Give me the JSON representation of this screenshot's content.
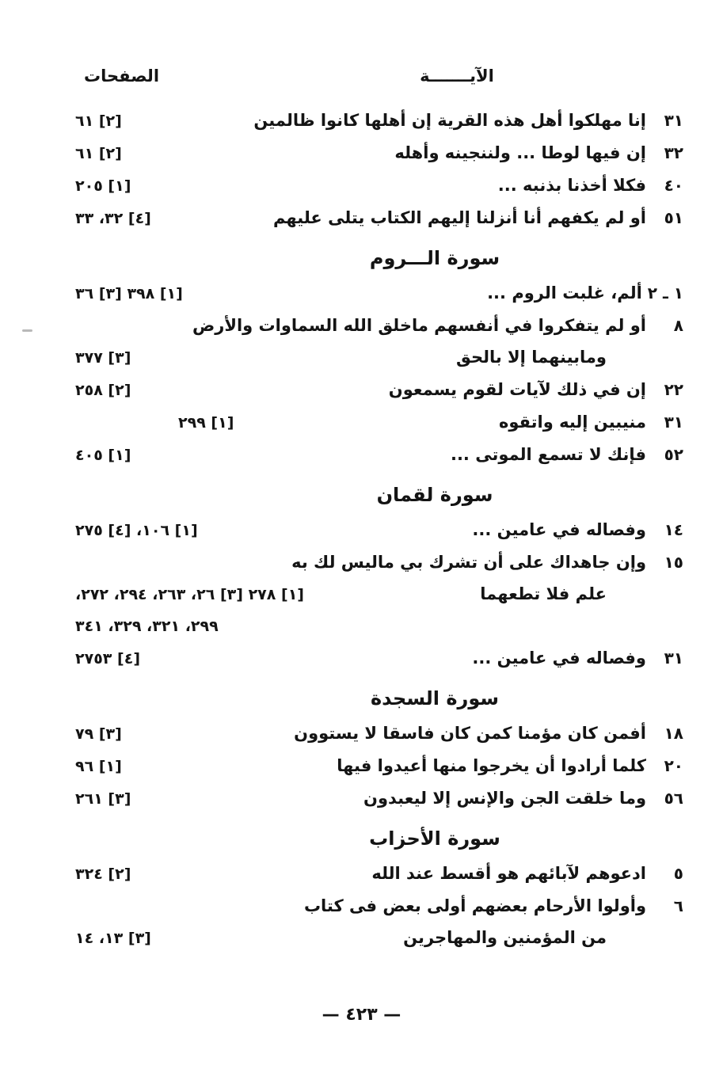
{
  "page": {
    "header": {
      "verse_label": "الآيـــــــة",
      "pages_label": "الصفحات"
    },
    "sections": [
      {
        "title": "",
        "rows": [
          {
            "verse": "٣١",
            "lines": [
              {
                "text": "إنا مهلكوا أهل هذه القرية إن أهلها كانوا ظالمين",
                "ref": "[٢] ٦١"
              }
            ]
          },
          {
            "verse": "٣٢",
            "lines": [
              {
                "text": "إن فيها لوطا ... ولننجينه وأهله",
                "ref": "[٢] ٦١"
              }
            ]
          },
          {
            "verse": "٤٠",
            "lines": [
              {
                "text": "فكلا أخذنا بذنبه ...",
                "ref": "[١] ٢٠٥"
              }
            ]
          },
          {
            "verse": "٥١",
            "lines": [
              {
                "text": "أو لم يكفهم أنا أنزلنا إليهم الكتاب يتلى عليهم",
                "ref": "[٤] ٣٢، ٣٣"
              }
            ]
          }
        ]
      },
      {
        "title": "سورة الـــروم",
        "rows": [
          {
            "verse": "١ ـ ٢",
            "lines": [
              {
                "text": "ألم، غلبت الروم ...",
                "ref": "[١] ٣٩٨ [٣] ٣٦"
              }
            ]
          },
          {
            "verse": "٨",
            "lines": [
              {
                "text": "أو لم يتفكروا في أنفسهم ماخلق الله السماوات والأرض",
                "ref": ""
              },
              {
                "text": "ومابينهما إلا بالحق",
                "ref": "[٣] ٣٧٧",
                "indent": true
              }
            ]
          },
          {
            "verse": "٢٢",
            "lines": [
              {
                "text": "إن في ذلك لآيات لقوم يسمعون",
                "ref": "[٢] ٢٥٨"
              }
            ]
          },
          {
            "verse": "٣١",
            "lines": [
              {
                "text": "منيبين إليه واتقوه",
                "ref": "[١] ٢٩٩",
                "ref_indent": true
              }
            ]
          },
          {
            "verse": "٥٢",
            "lines": [
              {
                "text": "فإنك لا تسمع الموتى ...",
                "ref": "[١] ٤٠٥"
              }
            ]
          }
        ]
      },
      {
        "title": "سورة لقمان",
        "rows": [
          {
            "verse": "١٤",
            "lines": [
              {
                "text": "وفصاله في عامين ...",
                "ref": "[١] ١٠٦، [٤] ٢٧٥"
              }
            ]
          },
          {
            "verse": "١٥",
            "lines": [
              {
                "text": "وإن جاهداك على أن تشرك بي ماليس لك به",
                "ref": ""
              },
              {
                "text": "علم فلا تطعهما",
                "ref": "[١] ٢٧٨ [٣] ٢٦، ٢٦٣، ٢٩٤، ٢٧٢،",
                "indent": true
              },
              {
                "text": "",
                "ref": "٢٩٩، ٣٢١، ٣٢٩، ٣٤١"
              }
            ]
          },
          {
            "verse": "٣١",
            "lines": [
              {
                "text": "وفصاله في عامين ...",
                "ref": "[٤] ٢٧٥٣"
              }
            ]
          }
        ]
      },
      {
        "title": "سورة السجدة",
        "rows": [
          {
            "verse": "١٨",
            "lines": [
              {
                "text": "أفمن كان مؤمنا كمن كان فاسقا لا يستوون",
                "ref": "[٣] ٧٩"
              }
            ]
          },
          {
            "verse": "٢٠",
            "lines": [
              {
                "text": "كلما أرادوا أن يخرجوا منها أعيدوا فيها",
                "ref": "[١] ٩٦"
              }
            ]
          },
          {
            "verse": "٥٦",
            "lines": [
              {
                "text": "وما خلقت الجن والإنس إلا ليعبدون",
                "ref": "[٣] ٢٦١"
              }
            ]
          }
        ]
      },
      {
        "title": "سورة الأحزاب",
        "rows": [
          {
            "verse": "٥",
            "lines": [
              {
                "text": "ادعوهم لآبائهم هو أقسط عند الله",
                "ref": "[٢] ٣٢٤"
              }
            ]
          },
          {
            "verse": "٦",
            "lines": [
              {
                "text": "وأولوا الأرحام بعضهم أولى بعض فى كتاب",
                "ref": ""
              },
              {
                "text": "من المؤمنين والمهاجرين",
                "ref": "[٣] ١٣، ١٤",
                "indent": true
              }
            ]
          }
        ]
      }
    ],
    "footer": {
      "page_number": "— ٤٢٣ —"
    },
    "colors": {
      "paper": "#ffffff",
      "ink": "#141414"
    }
  }
}
